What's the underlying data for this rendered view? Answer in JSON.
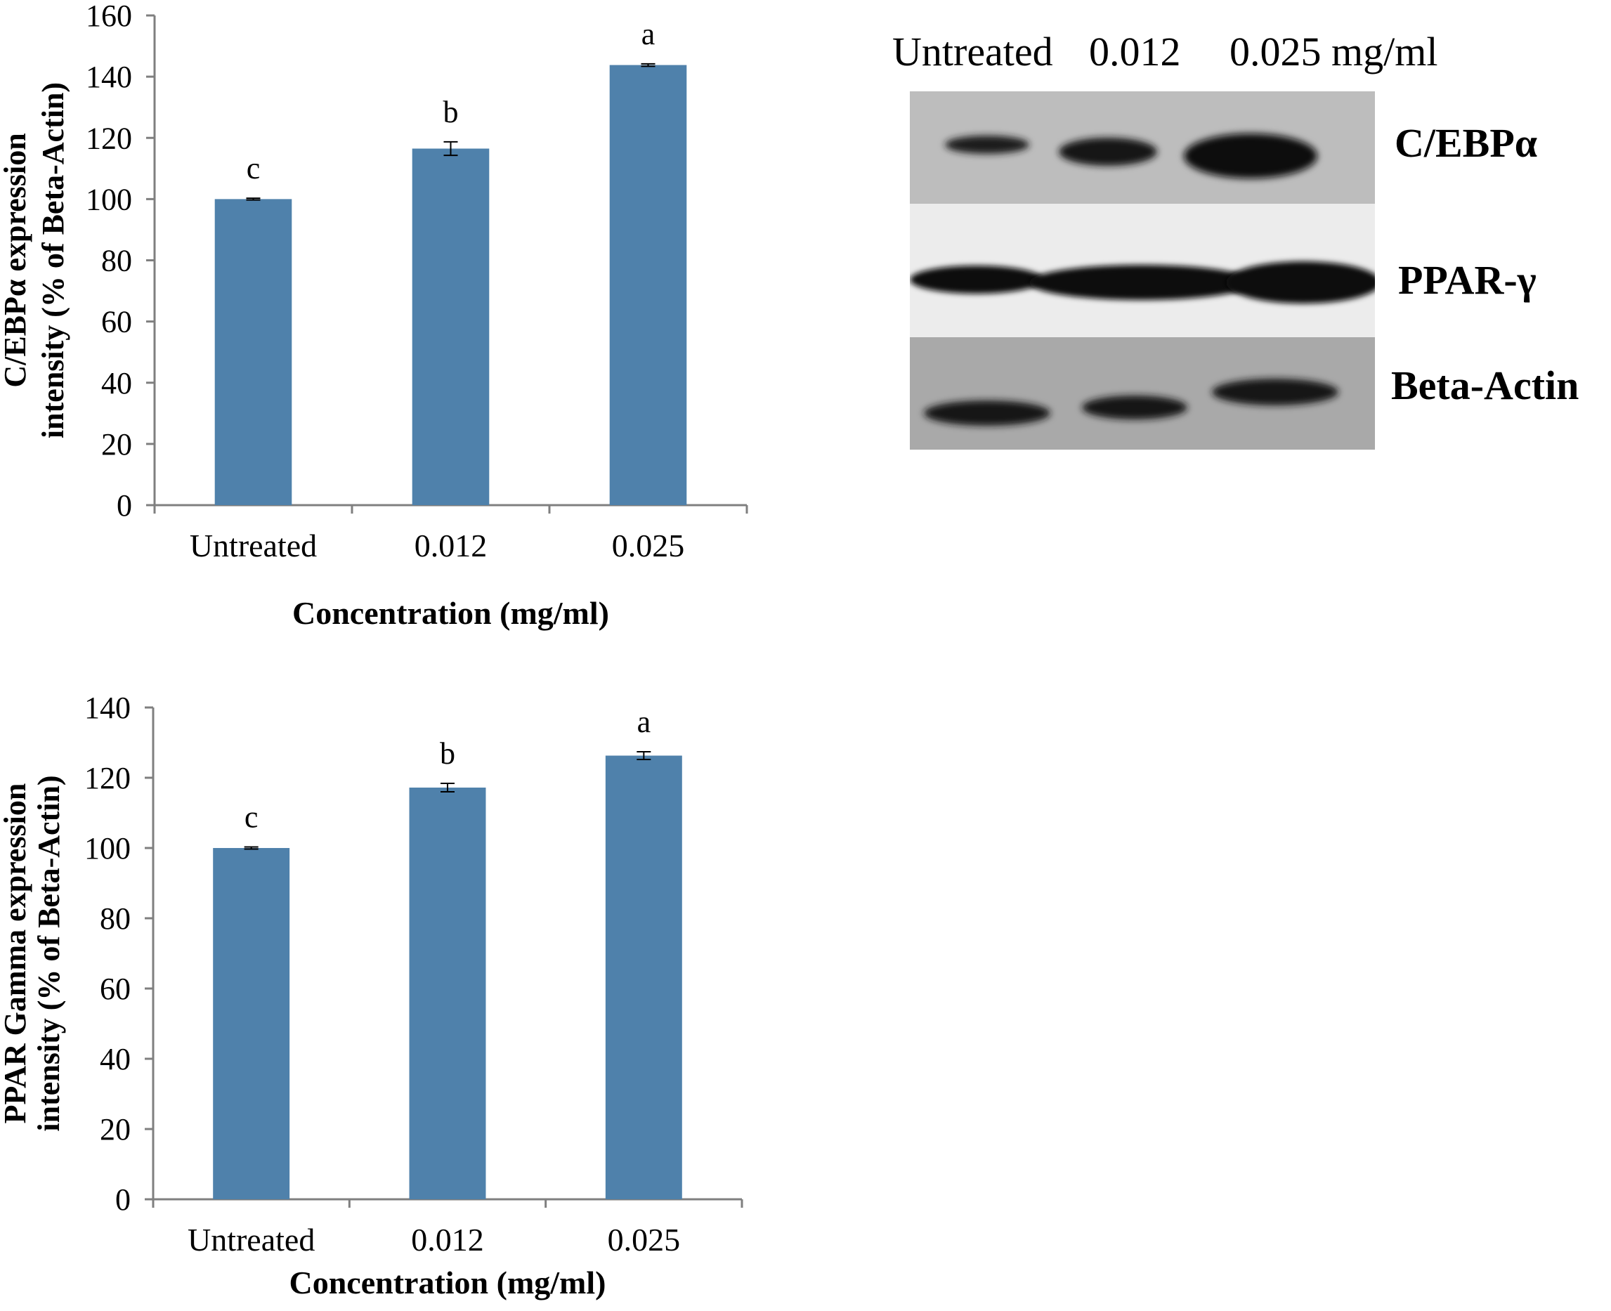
{
  "chart_data": [
    {
      "type": "bar",
      "categories": [
        "Untreated",
        "0.012",
        "0.025"
      ],
      "values": [
        100,
        116.5,
        143.8
      ],
      "errors": [
        0.3,
        2.2,
        0.4
      ],
      "significance_letters": [
        "c",
        "b",
        "a"
      ],
      "xlabel": "Concentration (mg/ml)",
      "ylabel_line1": "C/EBPα expression",
      "ylabel_line2": "intensity (% of  Beta-Actin)",
      "ylim": [
        0,
        160
      ],
      "yticks": [
        0,
        20,
        40,
        60,
        80,
        100,
        120,
        140,
        160
      ],
      "grid": false,
      "bar_color": "#4F81AB"
    },
    {
      "type": "bar",
      "categories": [
        "Untreated",
        "0.012",
        "0.025"
      ],
      "values": [
        100,
        117.2,
        126.3
      ],
      "errors": [
        0.3,
        1.2,
        1.1
      ],
      "significance_letters": [
        "c",
        "b",
        "a"
      ],
      "xlabel": "Concentration (mg/ml)",
      "ylabel_line1": "PPAR Gamma expression",
      "ylabel_line2": "intensity (% of Beta-Actin)",
      "ylim": [
        0,
        140
      ],
      "yticks": [
        0,
        20,
        40,
        60,
        80,
        100,
        120,
        140
      ],
      "grid": false,
      "bar_color": "#4F81AB"
    }
  ],
  "western_blot": {
    "header": {
      "untreated": "Untreated",
      "low": "0.012",
      "high": "0.025 mg/ml"
    },
    "proteins": [
      "C/EBPα",
      "PPAR-γ",
      "Beta-Actin"
    ]
  }
}
